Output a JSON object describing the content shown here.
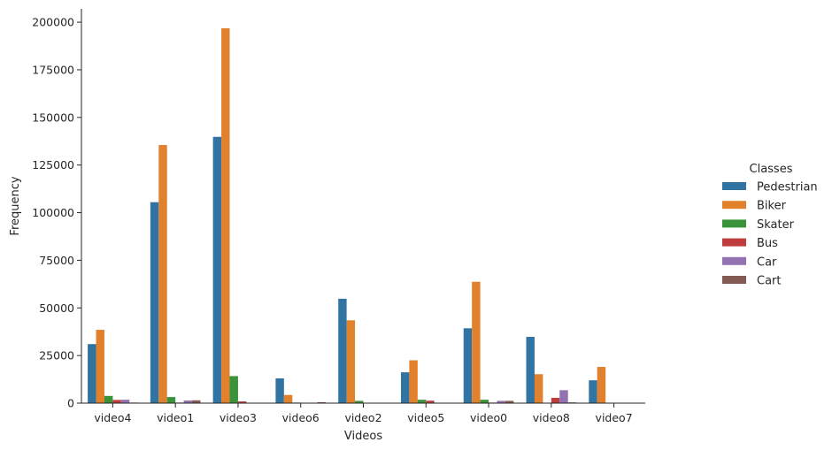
{
  "chart_data": {
    "type": "bar",
    "xlabel": "Videos",
    "ylabel": "Frequency",
    "ylim": [
      0,
      207000
    ],
    "yticks": [
      0,
      25000,
      50000,
      75000,
      100000,
      125000,
      150000,
      175000,
      200000
    ],
    "categories": [
      "video4",
      "video1",
      "video3",
      "video6",
      "video2",
      "video5",
      "video0",
      "video8",
      "video7"
    ],
    "legend_title": "Classes",
    "legend_position": "right",
    "grid": false,
    "series": [
      {
        "name": "Pedestrian",
        "color": "#3274a1",
        "values": [
          31000,
          105500,
          139800,
          13000,
          54800,
          16200,
          39300,
          34800,
          12000
        ]
      },
      {
        "name": "Biker",
        "color": "#e1812c",
        "values": [
          38500,
          135500,
          196800,
          4300,
          43500,
          22500,
          63700,
          15200,
          19000
        ]
      },
      {
        "name": "Skater",
        "color": "#3a923a",
        "values": [
          3800,
          3200,
          14200,
          300,
          1200,
          1800,
          1800,
          100,
          0
        ]
      },
      {
        "name": "Bus",
        "color": "#c03d3e",
        "values": [
          1700,
          300,
          900,
          100,
          100,
          1300,
          300,
          2800,
          0
        ]
      },
      {
        "name": "Car",
        "color": "#9372b2",
        "values": [
          1800,
          1400,
          100,
          100,
          0,
          0,
          1200,
          6800,
          0
        ]
      },
      {
        "name": "Cart",
        "color": "#845b53",
        "values": [
          300,
          1500,
          0,
          500,
          0,
          0,
          1200,
          400,
          0
        ]
      }
    ]
  }
}
